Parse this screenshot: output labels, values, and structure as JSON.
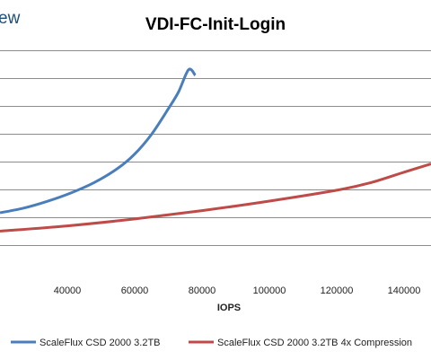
{
  "corner_text": "ew",
  "chart_data": {
    "type": "line",
    "title": "VDI-FC-Init-Login",
    "xlabel": "IOPS",
    "ylabel": "",
    "xlim": [
      20000,
      148000
    ],
    "ylim": [
      0,
      8
    ],
    "x_ticks": [
      40000,
      60000,
      80000,
      100000,
      120000,
      140000
    ],
    "x_tick_labels": [
      "40000",
      "60000",
      "80000",
      "100000",
      "120000",
      "140000"
    ],
    "y_gridlines": [
      1,
      2,
      3,
      4,
      5,
      6,
      7,
      8
    ],
    "grid": true,
    "legend_position": "bottom",
    "series": [
      {
        "name": "ScaleFlux CSD 2000 3.2TB",
        "color": "#4a7ebb",
        "x": [
          20000,
          27000,
          34000,
          41000,
          48000,
          55000,
          60000,
          65000,
          70000,
          73000,
          76000,
          78000
        ],
        "y": [
          2.16,
          2.33,
          2.57,
          2.87,
          3.25,
          3.76,
          4.27,
          4.98,
          5.9,
          6.5,
          7.3,
          7.1
        ]
      },
      {
        "name": "ScaleFlux CSD 2000 3.2TB 4x Compression",
        "color": "#be4b48",
        "x": [
          20000,
          40000,
          60000,
          80000,
          100000,
          120000,
          130000,
          140000,
          148000
        ],
        "y": [
          1.5,
          1.69,
          1.94,
          2.24,
          2.58,
          2.97,
          3.24,
          3.62,
          3.92
        ]
      }
    ]
  }
}
